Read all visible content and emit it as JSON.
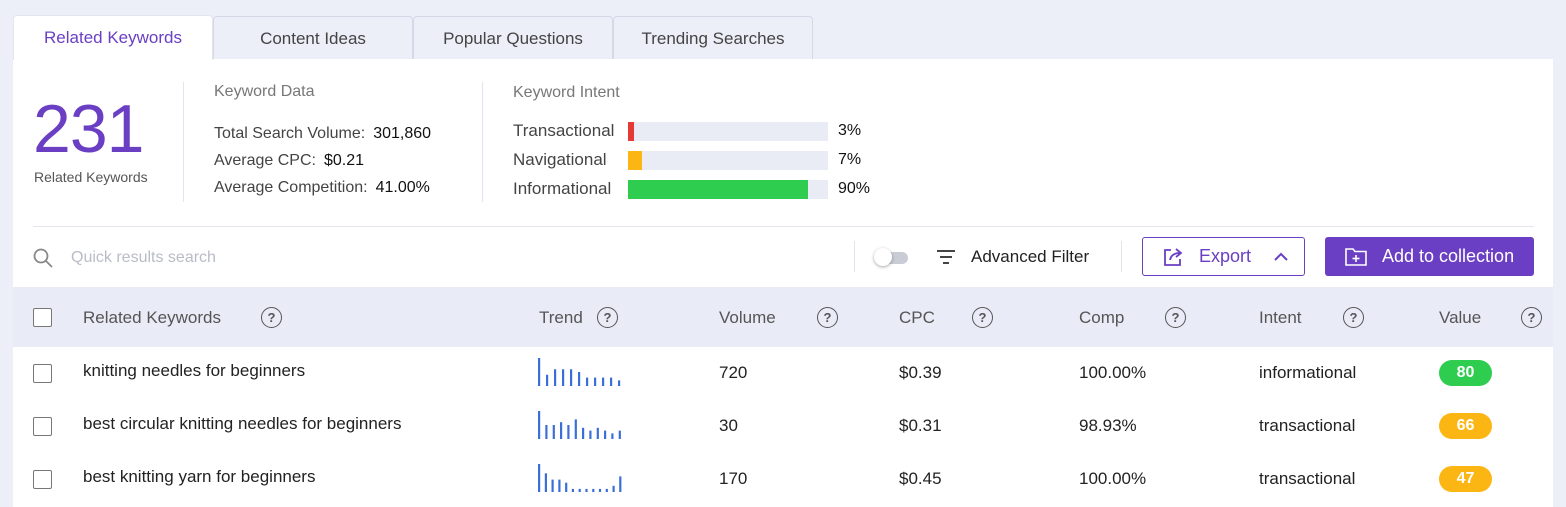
{
  "tabs": [
    {
      "label": "Related Keywords",
      "active": true
    },
    {
      "label": "Content Ideas",
      "active": false
    },
    {
      "label": "Popular Questions",
      "active": false
    },
    {
      "label": "Trending Searches",
      "active": false
    }
  ],
  "summary": {
    "count": "231",
    "count_label": "Related Keywords"
  },
  "keyword_data": {
    "title": "Keyword Data",
    "total_search_volume_label": "Total Search Volume:",
    "total_search_volume": "301,860",
    "average_cpc_label": "Average CPC:",
    "average_cpc": "$0.21",
    "average_competition_label": "Average Competition:",
    "average_competition": "41.00%"
  },
  "keyword_intent": {
    "title": "Keyword Intent",
    "items": [
      {
        "label": "Transactional",
        "percent_text": "3%",
        "percent": 3,
        "color": "#e53935"
      },
      {
        "label": "Navigational",
        "percent_text": "7%",
        "percent": 7,
        "color": "#fbb614"
      },
      {
        "label": "Informational",
        "percent_text": "90%",
        "percent": 90,
        "color": "#2ecc4f"
      }
    ]
  },
  "toolbar": {
    "search_placeholder": "Quick results search",
    "search_icon": "search-icon",
    "advanced_filter_label": "Advanced Filter",
    "export_label": "Export",
    "add_to_collection_label": "Add to collection"
  },
  "table": {
    "headers": {
      "keyword": "Related Keywords",
      "trend": "Trend",
      "volume": "Volume",
      "cpc": "CPC",
      "comp": "Comp",
      "intent": "Intent",
      "value": "Value"
    },
    "help_glyph": "?",
    "rows": [
      {
        "keyword": "knitting needles for beginners",
        "trend": [
          10,
          4,
          6,
          6,
          6,
          5,
          3,
          3,
          3,
          3,
          2
        ],
        "volume": "720",
        "cpc": "$0.39",
        "comp": "100.00%",
        "intent": "informational",
        "value": "80",
        "value_color": "#2ecc4f"
      },
      {
        "keyword": "best circular knitting needles for beginners",
        "trend": [
          10,
          5,
          5,
          6,
          5,
          7,
          4,
          3,
          4,
          3,
          2,
          3
        ],
        "volume": "30",
        "cpc": "$0.31",
        "comp": "98.93%",
        "intent": "transactional",
        "value": "66",
        "value_color": "#fbb614"
      },
      {
        "keyword": "best knitting yarn for beginners",
        "trend": [
          9,
          6,
          4,
          4,
          3,
          1,
          1,
          1,
          1,
          1,
          1,
          2,
          5
        ],
        "volume": "170",
        "cpc": "$0.45",
        "comp": "100.00%",
        "intent": "transactional",
        "value": "47",
        "value_color": "#fbb614"
      }
    ]
  },
  "colors": {
    "accent": "#6a3fc3",
    "trend_bar": "#3b6fd8"
  }
}
